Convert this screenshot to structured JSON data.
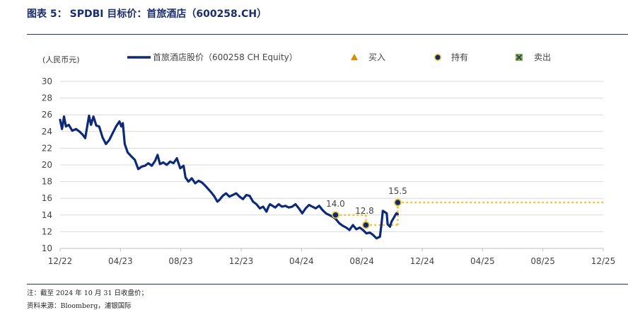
{
  "header": {
    "figure_label": "图表 5：",
    "figure_title": "SPDBI 目标价：首旅酒店（600258.CH）"
  },
  "footer": {
    "note": "注：截至 2024 年 10 月 31 日收盘价；",
    "source": "资料来源：Bloomberg，浦银国际"
  },
  "colors": {
    "price_line": "#0d2a7a",
    "marker": "#0d2a7a",
    "marker_ring": "#f0c020",
    "target_line": "#f0c020",
    "grid": "#d9d9d9",
    "rule": "#1f3864",
    "buy": "#e08a00",
    "sell": "#8bb04a"
  },
  "chart_data": {
    "type": "line",
    "unit_label": "(人民币元)",
    "ylim": [
      10,
      30
    ],
    "yticks": [
      10,
      12,
      14,
      16,
      18,
      20,
      22,
      24,
      26,
      28,
      30
    ],
    "xlim": [
      "2022-12-01",
      "2025-12-31"
    ],
    "x_tick_labels": [
      "12/22",
      "04/23",
      "08/23",
      "12/23",
      "04/24",
      "08/24",
      "12/24",
      "04/25",
      "08/25",
      "12/25"
    ],
    "grid": true,
    "legend_position": "top",
    "legend": [
      {
        "name": "首旅酒店股价（600258 CH Equity）",
        "icon": "line-swatch"
      },
      {
        "name": "买入",
        "icon": "triangle-icon"
      },
      {
        "name": "持有",
        "icon": "circle-icon"
      },
      {
        "name": "卖出",
        "icon": "x-box-icon"
      }
    ],
    "series": [
      {
        "name": "首旅酒店股价（600258 CH Equity）",
        "points": [
          [
            "2022-12-01",
            25.4
          ],
          [
            "2022-12-05",
            24.3
          ],
          [
            "2022-12-09",
            25.8
          ],
          [
            "2022-12-13",
            24.6
          ],
          [
            "2022-12-19",
            24.8
          ],
          [
            "2022-12-26",
            24.1
          ],
          [
            "2023-01-03",
            24.3
          ],
          [
            "2023-01-10",
            24.0
          ],
          [
            "2023-01-17",
            23.6
          ],
          [
            "2023-01-22",
            23.2
          ],
          [
            "2023-01-30",
            25.9
          ],
          [
            "2023-02-03",
            24.8
          ],
          [
            "2023-02-08",
            25.8
          ],
          [
            "2023-02-14",
            24.7
          ],
          [
            "2023-02-20",
            24.6
          ],
          [
            "2023-02-27",
            23.3
          ],
          [
            "2023-03-06",
            22.5
          ],
          [
            "2023-03-13",
            23.0
          ],
          [
            "2023-03-20",
            23.8
          ],
          [
            "2023-03-27",
            24.6
          ],
          [
            "2023-04-03",
            25.2
          ],
          [
            "2023-04-07",
            24.6
          ],
          [
            "2023-04-10",
            25.0
          ],
          [
            "2023-04-14",
            22.5
          ],
          [
            "2023-04-20",
            21.5
          ],
          [
            "2023-04-28",
            21.0
          ],
          [
            "2023-05-05",
            20.6
          ],
          [
            "2023-05-12",
            19.5
          ],
          [
            "2023-05-19",
            19.8
          ],
          [
            "2023-05-26",
            19.9
          ],
          [
            "2023-06-02",
            20.2
          ],
          [
            "2023-06-09",
            19.9
          ],
          [
            "2023-06-16",
            20.5
          ],
          [
            "2023-06-21",
            21.2
          ],
          [
            "2023-06-26",
            20.1
          ],
          [
            "2023-07-03",
            20.3
          ],
          [
            "2023-07-10",
            20.0
          ],
          [
            "2023-07-17",
            20.4
          ],
          [
            "2023-07-24",
            20.2
          ],
          [
            "2023-07-31",
            20.8
          ],
          [
            "2023-08-07",
            19.6
          ],
          [
            "2023-08-14",
            19.9
          ],
          [
            "2023-08-18",
            18.5
          ],
          [
            "2023-08-24",
            18.0
          ],
          [
            "2023-08-31",
            18.4
          ],
          [
            "2023-09-07",
            17.8
          ],
          [
            "2023-09-14",
            18.1
          ],
          [
            "2023-09-21",
            17.9
          ],
          [
            "2023-09-28",
            17.5
          ],
          [
            "2023-10-09",
            16.8
          ],
          [
            "2023-10-16",
            16.3
          ],
          [
            "2023-10-23",
            15.6
          ],
          [
            "2023-10-27",
            15.8
          ],
          [
            "2023-11-03",
            16.3
          ],
          [
            "2023-11-10",
            16.6
          ],
          [
            "2023-11-17",
            16.2
          ],
          [
            "2023-11-24",
            16.4
          ],
          [
            "2023-12-01",
            16.6
          ],
          [
            "2023-12-08",
            16.2
          ],
          [
            "2023-12-15",
            15.9
          ],
          [
            "2023-12-22",
            16.4
          ],
          [
            "2023-12-29",
            16.3
          ],
          [
            "2024-01-05",
            15.6
          ],
          [
            "2024-01-12",
            15.3
          ],
          [
            "2024-01-19",
            14.8
          ],
          [
            "2024-01-26",
            15.0
          ],
          [
            "2024-02-02",
            14.4
          ],
          [
            "2024-02-06",
            15.0
          ],
          [
            "2024-02-09",
            15.3
          ],
          [
            "2024-02-20",
            14.9
          ],
          [
            "2024-02-27",
            15.3
          ],
          [
            "2024-03-05",
            15.0
          ],
          [
            "2024-03-12",
            15.1
          ],
          [
            "2024-03-19",
            14.9
          ],
          [
            "2024-03-26",
            15.0
          ],
          [
            "2024-04-02",
            15.3
          ],
          [
            "2024-04-09",
            14.8
          ],
          [
            "2024-04-16",
            14.2
          ],
          [
            "2024-04-23",
            14.8
          ],
          [
            "2024-04-30",
            15.2
          ],
          [
            "2024-05-07",
            15.0
          ],
          [
            "2024-05-14",
            14.8
          ],
          [
            "2024-05-21",
            15.1
          ],
          [
            "2024-05-28",
            14.6
          ],
          [
            "2024-06-04",
            14.2
          ],
          [
            "2024-06-11",
            14.0
          ],
          [
            "2024-06-18",
            13.8
          ],
          [
            "2024-06-25",
            13.5
          ],
          [
            "2024-07-02",
            13.0
          ],
          [
            "2024-07-09",
            12.7
          ],
          [
            "2024-07-16",
            12.5
          ],
          [
            "2024-07-23",
            12.2
          ],
          [
            "2024-07-30",
            12.8
          ],
          [
            "2024-08-06",
            12.3
          ],
          [
            "2024-08-13",
            12.5
          ],
          [
            "2024-08-20",
            12.2
          ],
          [
            "2024-08-27",
            11.8
          ],
          [
            "2024-09-03",
            11.9
          ],
          [
            "2024-09-10",
            11.6
          ],
          [
            "2024-09-17",
            11.2
          ],
          [
            "2024-09-24",
            11.4
          ],
          [
            "2024-09-27",
            12.8
          ],
          [
            "2024-09-30",
            14.5
          ],
          [
            "2024-10-08",
            14.2
          ],
          [
            "2024-10-10",
            12.9
          ],
          [
            "2024-10-15",
            12.6
          ],
          [
            "2024-10-18",
            13.2
          ],
          [
            "2024-10-24",
            13.8
          ],
          [
            "2024-10-28",
            14.2
          ],
          [
            "2024-10-31",
            14.1
          ]
        ]
      }
    ],
    "ratings": [
      {
        "date": "2024-06-24",
        "rating": "持有",
        "target_price": 14.0,
        "label": "14.0",
        "label_position": "above"
      },
      {
        "date": "2024-08-26",
        "rating": "持有",
        "target_price": 12.8,
        "label": "12.8",
        "label_position": "left"
      },
      {
        "date": "2024-10-31",
        "rating": "持有",
        "target_price": 15.5,
        "label": "15.5",
        "label_position": "above"
      }
    ],
    "target_projection": {
      "from": "2024-10-31",
      "to": "2025-12-31",
      "value": 15.5
    }
  }
}
